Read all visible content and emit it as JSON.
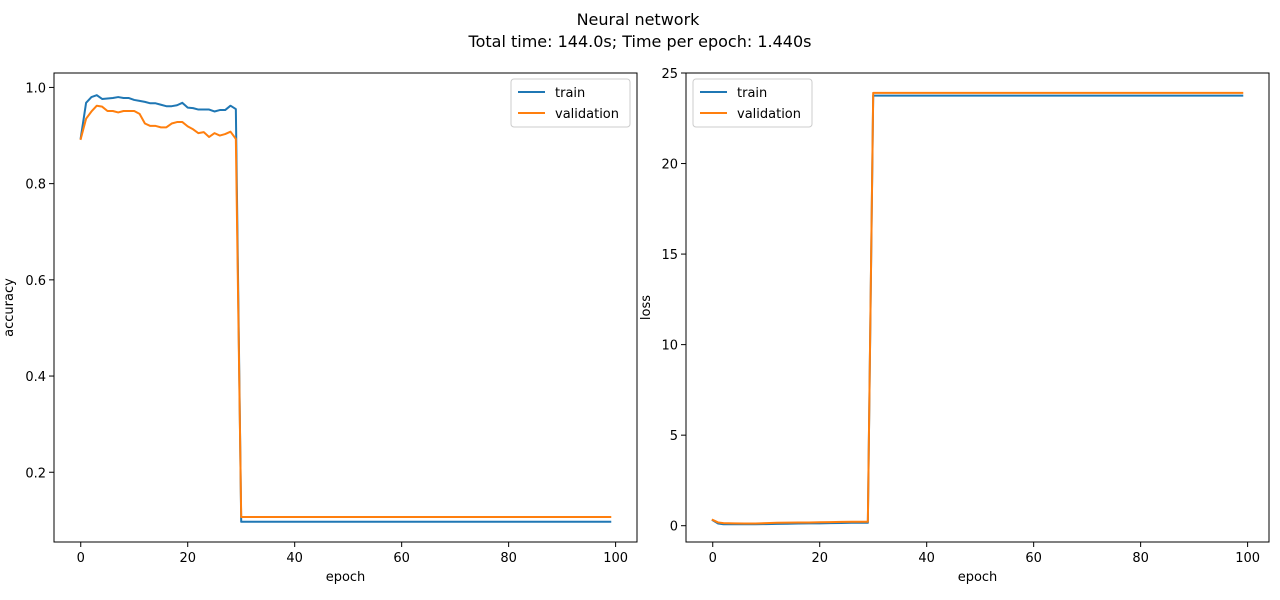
{
  "figure": {
    "title_line1": "Neural network",
    "title_line2": "Total time: 144.0s; Time per epoch: 1.440s"
  },
  "colors": {
    "train": "#1f77b4",
    "validation": "#ff7f0e"
  },
  "chart_data": [
    {
      "type": "line",
      "xlabel": "epoch",
      "ylabel": "accuracy",
      "xlim": [
        -5,
        104
      ],
      "ylim": [
        0.055,
        1.03
      ],
      "xticks": [
        0,
        20,
        40,
        60,
        80,
        100
      ],
      "yticks": [
        0.2,
        0.4,
        0.6,
        0.8,
        1.0
      ],
      "ytick_labels": [
        "0.2",
        "0.4",
        "0.6",
        "0.8",
        "1.0"
      ],
      "legend_position": "top-right",
      "series": [
        {
          "name": "train",
          "x": [
            0,
            1,
            2,
            3,
            4,
            5,
            6,
            7,
            8,
            9,
            10,
            11,
            12,
            13,
            14,
            15,
            16,
            17,
            18,
            19,
            20,
            21,
            22,
            23,
            24,
            25,
            26,
            27,
            28,
            29,
            30,
            99
          ],
          "y": [
            0.895,
            0.968,
            0.98,
            0.984,
            0.976,
            0.977,
            0.978,
            0.98,
            0.978,
            0.978,
            0.974,
            0.972,
            0.97,
            0.967,
            0.967,
            0.964,
            0.961,
            0.961,
            0.963,
            0.968,
            0.958,
            0.957,
            0.954,
            0.954,
            0.954,
            0.95,
            0.953,
            0.953,
            0.962,
            0.955,
            0.097,
            0.097
          ]
        },
        {
          "name": "validation",
          "x": [
            0,
            1,
            2,
            3,
            4,
            5,
            6,
            7,
            8,
            9,
            10,
            11,
            12,
            13,
            14,
            15,
            16,
            17,
            18,
            19,
            20,
            21,
            22,
            23,
            24,
            25,
            26,
            27,
            28,
            29,
            30,
            99
          ],
          "y": [
            0.893,
            0.935,
            0.95,
            0.962,
            0.96,
            0.951,
            0.951,
            0.948,
            0.951,
            0.951,
            0.951,
            0.945,
            0.925,
            0.92,
            0.92,
            0.917,
            0.917,
            0.925,
            0.928,
            0.928,
            0.919,
            0.913,
            0.905,
            0.907,
            0.897,
            0.905,
            0.9,
            0.903,
            0.908,
            0.893,
            0.107,
            0.107
          ]
        }
      ]
    },
    {
      "type": "line",
      "xlabel": "epoch",
      "ylabel": "loss",
      "xlim": [
        -5,
        104
      ],
      "ylim": [
        -0.9,
        25
      ],
      "xticks": [
        0,
        20,
        40,
        60,
        80,
        100
      ],
      "yticks": [
        0,
        5,
        10,
        15,
        20,
        25
      ],
      "ytick_labels": [
        "0",
        "5",
        "10",
        "15",
        "20",
        "25"
      ],
      "legend_position": "top-left",
      "series": [
        {
          "name": "train",
          "x": [
            0,
            1,
            2,
            4,
            6,
            8,
            10,
            12,
            14,
            16,
            18,
            20,
            22,
            24,
            26,
            28,
            29,
            30,
            99
          ],
          "y": [
            0.3,
            0.12,
            0.08,
            0.08,
            0.08,
            0.08,
            0.09,
            0.1,
            0.11,
            0.12,
            0.13,
            0.13,
            0.14,
            0.15,
            0.16,
            0.16,
            0.16,
            23.75,
            23.75
          ]
        },
        {
          "name": "validation",
          "x": [
            0,
            1,
            2,
            4,
            6,
            8,
            10,
            12,
            14,
            16,
            18,
            20,
            22,
            24,
            26,
            28,
            29,
            30,
            99
          ],
          "y": [
            0.32,
            0.18,
            0.14,
            0.13,
            0.12,
            0.12,
            0.14,
            0.16,
            0.17,
            0.18,
            0.18,
            0.19,
            0.2,
            0.21,
            0.22,
            0.22,
            0.22,
            23.9,
            23.9
          ]
        }
      ]
    }
  ]
}
